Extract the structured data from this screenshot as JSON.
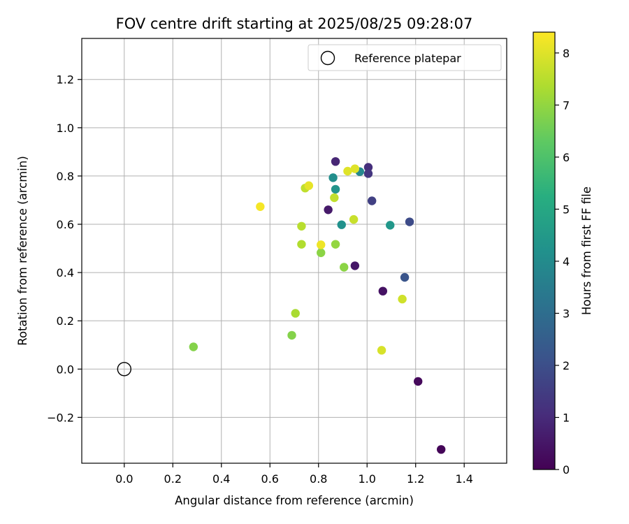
{
  "chart_data": {
    "type": "scatter",
    "title": "FOV centre drift starting at 2025/08/25 09:28:07",
    "xlabel": "Angular distance from reference (arcmin)",
    "ylabel": "Rotation from reference (arcmin)",
    "xlim": [
      -0.175,
      1.575
    ],
    "ylim": [
      -0.39,
      1.37
    ],
    "xticks": [
      "0.0",
      "0.2",
      "0.4",
      "0.6",
      "0.8",
      "1.0",
      "1.2",
      "1.4"
    ],
    "yticks": [
      "−0.2",
      "0.0",
      "0.2",
      "0.4",
      "0.6",
      "0.8",
      "1.0",
      "1.2"
    ],
    "grid": true,
    "legend": {
      "position": "top-right",
      "entries": [
        "Reference platepar"
      ]
    },
    "colorbar": {
      "label": "Hours from first FF file",
      "colormap": "viridis",
      "range": [
        0,
        8.4
      ],
      "ticks": [
        "0",
        "1",
        "2",
        "3",
        "4",
        "5",
        "6",
        "7",
        "8"
      ]
    },
    "reference_point": {
      "x": 0.0,
      "y": 0.0
    },
    "points": [
      {
        "x": 1.305,
        "y": -0.333,
        "h": 0.1
      },
      {
        "x": 1.21,
        "y": -0.051,
        "h": 0.2
      },
      {
        "x": 1.065,
        "y": 0.323,
        "h": 0.4
      },
      {
        "x": 0.95,
        "y": 0.428,
        "h": 0.5
      },
      {
        "x": 0.84,
        "y": 0.66,
        "h": 0.6
      },
      {
        "x": 0.87,
        "y": 0.86,
        "h": 0.9
      },
      {
        "x": 1.005,
        "y": 0.836,
        "h": 1.1
      },
      {
        "x": 1.005,
        "y": 0.81,
        "h": 1.3
      },
      {
        "x": 1.02,
        "y": 0.697,
        "h": 1.6
      },
      {
        "x": 1.175,
        "y": 0.61,
        "h": 1.9
      },
      {
        "x": 1.155,
        "y": 0.38,
        "h": 2.2
      },
      {
        "x": 0.97,
        "y": 0.818,
        "h": 3.9
      },
      {
        "x": 0.86,
        "y": 0.793,
        "h": 4.1
      },
      {
        "x": 0.87,
        "y": 0.745,
        "h": 4.3
      },
      {
        "x": 0.895,
        "y": 0.598,
        "h": 4.2
      },
      {
        "x": 1.095,
        "y": 0.596,
        "h": 4.4
      },
      {
        "x": 0.285,
        "y": 0.092,
        "h": 6.8
      },
      {
        "x": 0.69,
        "y": 0.14,
        "h": 6.8
      },
      {
        "x": 0.905,
        "y": 0.422,
        "h": 6.9
      },
      {
        "x": 0.81,
        "y": 0.482,
        "h": 6.9
      },
      {
        "x": 0.87,
        "y": 0.517,
        "h": 7.0
      },
      {
        "x": 0.705,
        "y": 0.231,
        "h": 7.3
      },
      {
        "x": 0.73,
        "y": 0.517,
        "h": 7.4
      },
      {
        "x": 0.73,
        "y": 0.592,
        "h": 7.5
      },
      {
        "x": 0.865,
        "y": 0.71,
        "h": 7.6
      },
      {
        "x": 0.945,
        "y": 0.62,
        "h": 7.7
      },
      {
        "x": 0.745,
        "y": 0.75,
        "h": 7.6
      },
      {
        "x": 1.145,
        "y": 0.29,
        "h": 7.8
      },
      {
        "x": 1.06,
        "y": 0.078,
        "h": 7.9
      },
      {
        "x": 0.95,
        "y": 0.83,
        "h": 8.0
      },
      {
        "x": 0.92,
        "y": 0.82,
        "h": 8.0
      },
      {
        "x": 0.76,
        "y": 0.76,
        "h": 8.1
      },
      {
        "x": 0.81,
        "y": 0.515,
        "h": 8.2
      },
      {
        "x": 0.56,
        "y": 0.673,
        "h": 8.3
      }
    ]
  }
}
